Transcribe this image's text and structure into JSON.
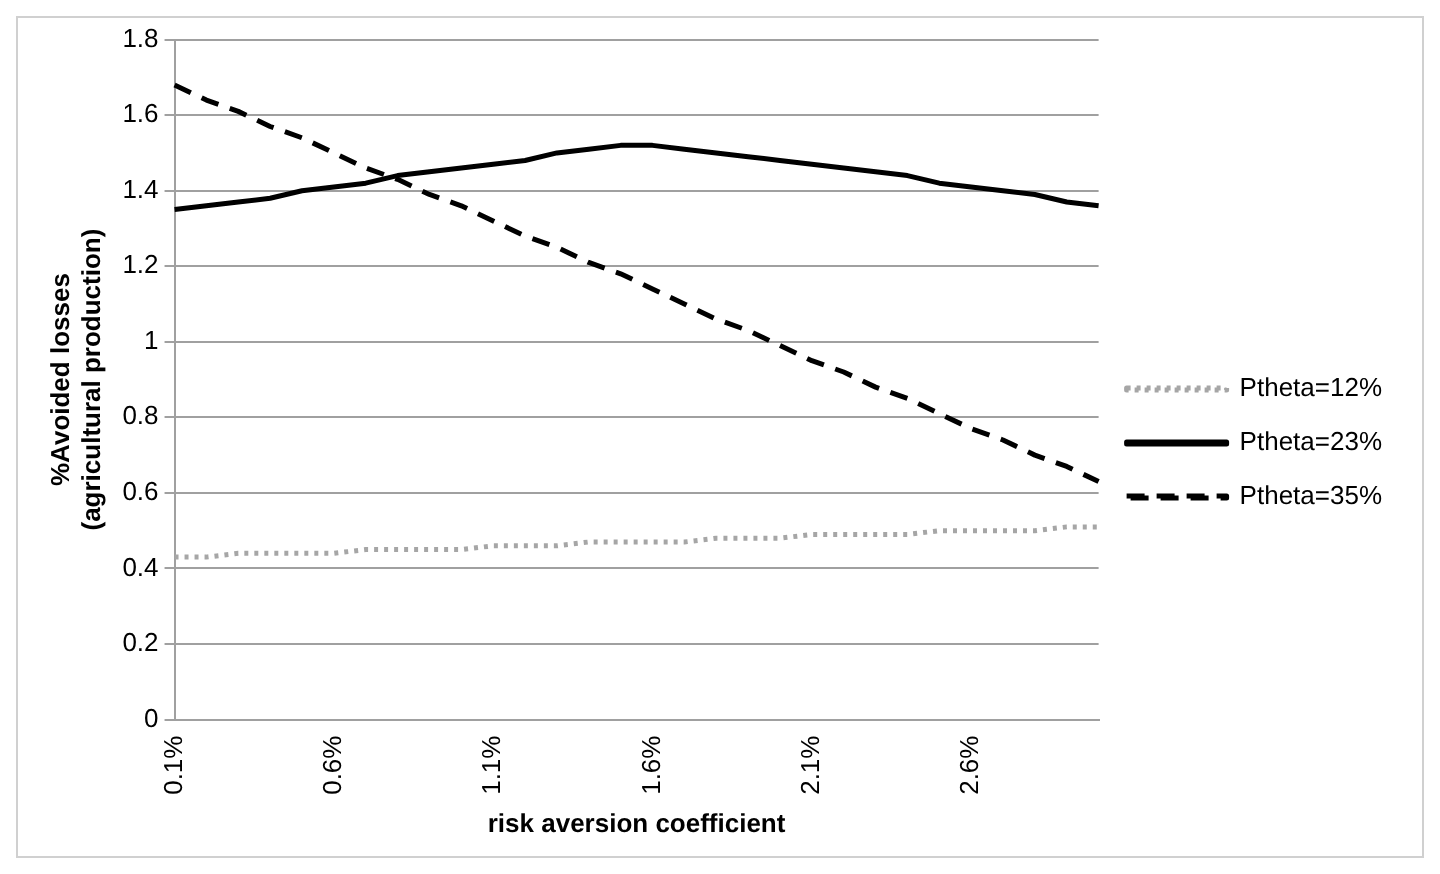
{
  "chart_data": {
    "type": "line",
    "xlabel": "risk aversion coefficient",
    "ylabel": "%Avoided losses (agricultural production)",
    "categories": [
      "0.1%",
      null,
      null,
      null,
      null,
      "0.6%",
      null,
      null,
      null,
      null,
      "1.1%",
      null,
      null,
      null,
      null,
      "1.6%",
      null,
      null,
      null,
      null,
      "2.1%",
      null,
      null,
      null,
      null,
      "2.6%",
      null,
      null,
      null,
      null
    ],
    "series": [
      {
        "name": "Ptheta=12%",
        "color": "#a6a6a6",
        "line_style": "dotted",
        "values": [
          0.43,
          0.43,
          0.44,
          0.44,
          0.44,
          0.44,
          0.45,
          0.45,
          0.45,
          0.45,
          0.46,
          0.46,
          0.46,
          0.47,
          0.47,
          0.47,
          0.47,
          0.48,
          0.48,
          0.48,
          0.49,
          0.49,
          0.49,
          0.49,
          0.5,
          0.5,
          0.5,
          0.5,
          0.51,
          0.51
        ]
      },
      {
        "name": "Ptheta=23%",
        "color": "#000000",
        "line_style": "solid",
        "values": [
          1.35,
          1.36,
          1.37,
          1.38,
          1.4,
          1.41,
          1.42,
          1.44,
          1.45,
          1.46,
          1.47,
          1.48,
          1.5,
          1.51,
          1.52,
          1.52,
          1.51,
          1.5,
          1.49,
          1.48,
          1.47,
          1.46,
          1.45,
          1.44,
          1.42,
          1.41,
          1.4,
          1.39,
          1.37,
          1.36
        ]
      },
      {
        "name": "Ptheta=35%",
        "color": "#000000",
        "line_style": "dashed",
        "values": [
          1.68,
          1.64,
          1.61,
          1.57,
          1.54,
          1.5,
          1.46,
          1.43,
          1.39,
          1.36,
          1.32,
          1.28,
          1.25,
          1.21,
          1.18,
          1.14,
          1.1,
          1.06,
          1.03,
          0.99,
          0.95,
          0.92,
          0.88,
          0.85,
          0.81,
          0.77,
          0.74,
          0.7,
          0.67,
          0.63
        ]
      }
    ],
    "ylim": [
      0,
      1.8
    ],
    "yticks": [
      0,
      0.2,
      0.4,
      0.6,
      0.8,
      1,
      1.2,
      1.4,
      1.6,
      1.8
    ],
    "grid": "y",
    "legend": "right",
    "marker": "none"
  }
}
